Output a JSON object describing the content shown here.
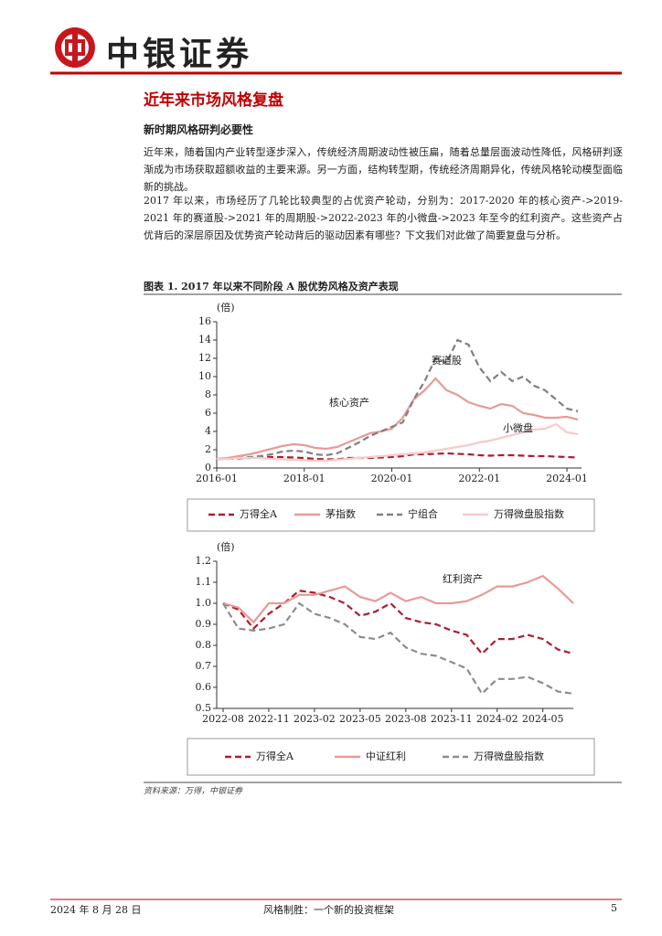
{
  "header": {
    "brand": "中银证券"
  },
  "section_title": "近年来市场风格复盘",
  "subsection_title": "新时期风格研判必要性",
  "paragraphs": [
    "近年来，随着国内产业转型逐步深入，传统经济周期波动性被压扁，随着总量层面波动性降低，风格研判逐渐成为市场获取超额收益的主要来源。另一方面，结构转型期，传统经济周期异化，传统风格轮动模型面临新的挑战。",
    "2017 年以来，市场经历了几轮比较典型的占优资产轮动，分别为：2017-2020 年的核心资产->2019-2021 年的赛道股->2021 年的周期股->2022-2023 年的小微盘->2023 年至今的红利资产。这些资产占优背后的深层原因及优势资产轮动背后的驱动因素有哪些？下文我们对此做了简要复盘与分析。"
  ],
  "figure_title": "图表 1. 2017 年以来不同阶段 A 股优势风格及资产表现",
  "chart_data": [
    {
      "type": "line",
      "ylabel": "(倍)",
      "x": [
        "2016-01",
        "2016-04",
        "2016-07",
        "2016-10",
        "2017-01",
        "2017-04",
        "2017-07",
        "2017-10",
        "2018-01",
        "2018-04",
        "2018-07",
        "2018-10",
        "2019-01",
        "2019-04",
        "2019-07",
        "2019-10",
        "2020-01",
        "2020-04",
        "2020-07",
        "2020-10",
        "2021-01",
        "2021-04",
        "2021-07",
        "2021-10",
        "2022-01",
        "2022-04",
        "2022-07",
        "2022-10",
        "2023-01",
        "2023-04",
        "2023-07",
        "2023-10",
        "2024-01",
        "2024-04"
      ],
      "xlim": [
        "2016-01",
        "2024-05"
      ],
      "xticks": [
        "2016-01",
        "2018-01",
        "2020-01",
        "2022-01",
        "2024-01"
      ],
      "ylim": [
        0,
        16
      ],
      "yticks": [
        0,
        2,
        4,
        6,
        8,
        10,
        12,
        14,
        16
      ],
      "series": [
        {
          "name": "万得全A",
          "color": "#b01c2e",
          "style": "dashed",
          "values": [
            1.0,
            1.0,
            1.05,
            1.1,
            1.15,
            1.2,
            1.2,
            1.15,
            1.1,
            1.0,
            0.95,
            0.95,
            1.1,
            1.1,
            1.1,
            1.15,
            1.2,
            1.3,
            1.5,
            1.5,
            1.55,
            1.6,
            1.55,
            1.5,
            1.4,
            1.35,
            1.4,
            1.4,
            1.35,
            1.3,
            1.3,
            1.25,
            1.2,
            1.15
          ]
        },
        {
          "name": "茅指数",
          "color": "#e89a98",
          "style": "solid",
          "values": [
            1.0,
            1.1,
            1.3,
            1.5,
            1.8,
            2.1,
            2.4,
            2.6,
            2.5,
            2.2,
            2.1,
            2.3,
            2.8,
            3.3,
            3.8,
            4.0,
            4.3,
            5.5,
            7.5,
            8.5,
            9.8,
            8.5,
            8.0,
            7.2,
            6.8,
            6.5,
            7.0,
            6.8,
            6.0,
            5.8,
            5.5,
            5.5,
            5.6,
            5.3
          ]
        },
        {
          "name": "宁组合",
          "color": "#808080",
          "style": "dashed",
          "values": [
            1.0,
            1.0,
            1.1,
            1.2,
            1.3,
            1.5,
            1.8,
            1.9,
            1.8,
            1.5,
            1.4,
            1.6,
            2.2,
            2.8,
            3.5,
            4.0,
            4.5,
            5.0,
            7.5,
            9.5,
            12,
            11.5,
            14,
            13.5,
            11,
            9.5,
            10.5,
            9.5,
            10,
            9,
            8.5,
            7.5,
            6.5,
            6.2
          ]
        },
        {
          "name": "万得微盘股指数",
          "color": "#f6caca",
          "style": "solid",
          "values": [
            1.0,
            1.0,
            1.1,
            1.1,
            1.1,
            1.0,
            0.95,
            0.9,
            0.85,
            0.8,
            0.8,
            0.9,
            1.0,
            1.1,
            1.2,
            1.3,
            1.4,
            1.5,
            1.6,
            1.7,
            1.9,
            2.1,
            2.3,
            2.5,
            2.8,
            3.0,
            3.3,
            3.6,
            3.9,
            4.2,
            4.3,
            4.8,
            3.9,
            3.7
          ]
        }
      ],
      "annotations": [
        "核心资产",
        "赛道股",
        "小微盘"
      ]
    },
    {
      "type": "line",
      "ylabel": "(倍)",
      "x": [
        "2022-08",
        "2022-09",
        "2022-10",
        "2022-11",
        "2022-12",
        "2023-01",
        "2023-02",
        "2023-03",
        "2023-04",
        "2023-05",
        "2023-06",
        "2023-07",
        "2023-08",
        "2023-09",
        "2023-10",
        "2023-11",
        "2023-12",
        "2024-01",
        "2024-02",
        "2024-03",
        "2024-04",
        "2024-05",
        "2024-06",
        "2024-07"
      ],
      "xlim": [
        "2022-08",
        "2024-07"
      ],
      "xticks": [
        "2022-08",
        "2022-11",
        "2023-02",
        "2023-05",
        "2023-08",
        "2023-11",
        "2024-02",
        "2024-05"
      ],
      "ylim": [
        0.5,
        1.2
      ],
      "yticks": [
        0.5,
        0.6,
        0.7,
        0.8,
        0.9,
        {
          "value": 1,
          "label": "1.0"
        },
        1.1,
        1.2
      ],
      "series": [
        {
          "name": "万得全A",
          "color": "#b01c2e",
          "style": "dashed",
          "values": [
            1.0,
            0.97,
            0.88,
            0.95,
            1.0,
            1.06,
            1.05,
            1.03,
            1.0,
            0.94,
            0.96,
            1.0,
            0.93,
            0.91,
            0.9,
            0.87,
            0.85,
            0.76,
            0.83,
            0.83,
            0.85,
            0.83,
            0.78,
            0.76
          ]
        },
        {
          "name": "中证红利",
          "color": "#e89a98",
          "style": "solid",
          "values": [
            1.0,
            0.98,
            0.91,
            1.0,
            1.0,
            1.04,
            1.04,
            1.06,
            1.08,
            1.03,
            1.01,
            1.05,
            1.01,
            1.03,
            1.0,
            1.0,
            1.01,
            1.04,
            1.08,
            1.08,
            1.1,
            1.13,
            1.07,
            1.0
          ]
        },
        {
          "name": "万得微盘股指数",
          "color": "#8c8c8c",
          "style": "dashed",
          "values": [
            1.0,
            0.88,
            0.87,
            0.88,
            0.9,
            1.0,
            0.95,
            0.93,
            0.9,
            0.84,
            0.83,
            0.86,
            0.79,
            0.76,
            0.75,
            0.72,
            0.69,
            0.57,
            0.64,
            0.64,
            0.65,
            0.62,
            0.58,
            0.57
          ]
        }
      ],
      "annotations": [
        "红利资产"
      ]
    }
  ],
  "source": "资料来源：万得，中银证券",
  "footer": {
    "date": "2024 年 8 月 28 日",
    "title": "风格制胜：一个新的投资框架",
    "page": "5"
  }
}
